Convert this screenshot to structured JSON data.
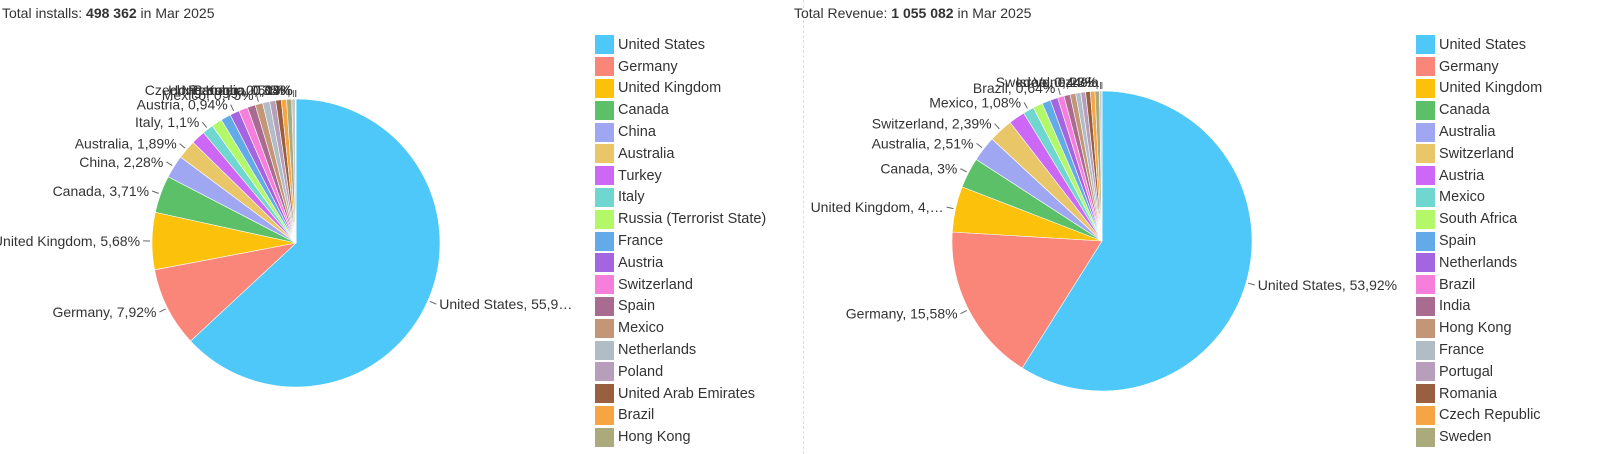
{
  "panels": [
    {
      "title_prefix": "Total installs:",
      "title_total": "498 362",
      "title_suffix": "in Mar 2025",
      "legend": [
        "United States",
        "Germany",
        "United Kingdom",
        "Canada",
        "China",
        "Australia",
        "Turkey",
        "Italy",
        "Russia (Terrorist State)",
        "France",
        "Austria",
        "Switzerland",
        "Spain",
        "Mexico",
        "Netherlands",
        "Poland",
        "United Arab Emirates",
        "Brazil",
        "Hong Kong"
      ]
    },
    {
      "title_prefix": "Total Revenue:",
      "title_total": "1 055 082",
      "title_suffix": "in Mar 2025",
      "legend": [
        "United States",
        "Germany",
        "United Kingdom",
        "Canada",
        "Australia",
        "Switzerland",
        "Austria",
        "Mexico",
        "South Africa",
        "Spain",
        "Netherlands",
        "Brazil",
        "India",
        "Hong Kong",
        "France",
        "Portugal",
        "Romania",
        "Czech Republic",
        "Sweden"
      ]
    }
  ],
  "colors": [
    "#4dc8f9",
    "#f98678",
    "#fcc10b",
    "#5bc067",
    "#9fa7f2",
    "#e9c768",
    "#cd67f5",
    "#6fd6d0",
    "#b3f868",
    "#63abe8",
    "#a465e0",
    "#f77fdc",
    "#a86c91",
    "#c49678",
    "#b0bcc6",
    "#b79ebb",
    "#986041",
    "#f6a545",
    "#aaaa7c"
  ],
  "chart_data": [
    {
      "type": "pie",
      "title": "Total installs: 498 362 in Mar 2025",
      "legend_position": "right",
      "slices": [
        {
          "label": "United States",
          "value": 55.9,
          "display": "United States, 55,9…"
        },
        {
          "label": "Germany",
          "value": 7.92,
          "display": "Germany, 7,92%"
        },
        {
          "label": "United Kingdom",
          "value": 5.68,
          "display": "United Kingdom, 5,68%"
        },
        {
          "label": "Canada",
          "value": 3.71,
          "display": "Canada, 3,71%"
        },
        {
          "label": "China",
          "value": 2.28,
          "display": "China, 2,28%"
        },
        {
          "label": "Australia",
          "value": 1.89,
          "display": "Australia, 1,89%"
        },
        {
          "label": "Turkey",
          "value": 1.4
        },
        {
          "label": "Italy",
          "value": 1.1,
          "display": "Italy, 1,1%"
        },
        {
          "label": "Russia (Terrorist State)",
          "value": 1.05
        },
        {
          "label": "France",
          "value": 1.0
        },
        {
          "label": "Austria",
          "value": 0.94,
          "display": "Austria, 0,94%"
        },
        {
          "label": "Switzerland",
          "value": 0.9
        },
        {
          "label": "Spain",
          "value": 0.8
        },
        {
          "label": "Mexico",
          "value": 0.75,
          "display": "Mexico, 0,75%"
        },
        {
          "label": "Netherlands",
          "value": 0.7
        },
        {
          "label": "Poland",
          "value": 0.6
        },
        {
          "label": "United Arab Emirates",
          "value": 0.55
        },
        {
          "label": "Brazil",
          "value": 0.52
        },
        {
          "label": "Hong Kong",
          "value": 0.51,
          "display": "Hong Kong, 0,51%"
        },
        {
          "label": "Czech Republic",
          "value": 0.35,
          "display": "Czech Republic, 0,35%"
        },
        {
          "label": "Panama",
          "value": 0.04,
          "display": "Panama, 0,04%"
        },
        {
          "label": "Nicaragua",
          "value": 0.03,
          "display": "Nicaragua, 0,03%"
        }
      ]
    },
    {
      "type": "pie",
      "title": "Total Revenue: 1 055 082 in Mar 2025",
      "legend_position": "right",
      "slices": [
        {
          "label": "United States",
          "value": 53.92,
          "display": "United States, 53,92%"
        },
        {
          "label": "Germany",
          "value": 15.58,
          "display": "Germany, 15,58%"
        },
        {
          "label": "United Kingdom",
          "value": 4.5,
          "display": "United Kingdom, 4,…"
        },
        {
          "label": "Canada",
          "value": 3.0,
          "display": "Canada, 3%"
        },
        {
          "label": "Australia",
          "value": 2.51,
          "display": "Australia, 2,51%"
        },
        {
          "label": "Switzerland",
          "value": 2.39,
          "display": "Switzerland, 2,39%"
        },
        {
          "label": "Austria",
          "value": 1.6
        },
        {
          "label": "Mexico",
          "value": 1.08,
          "display": "Mexico, 1,08%"
        },
        {
          "label": "South Africa",
          "value": 0.95
        },
        {
          "label": "Spain",
          "value": 0.85
        },
        {
          "label": "Netherlands",
          "value": 0.75
        },
        {
          "label": "Brazil",
          "value": 0.64,
          "display": "Brazil, 0,64%"
        },
        {
          "label": "India",
          "value": 0.6
        },
        {
          "label": "Hong Kong",
          "value": 0.55
        },
        {
          "label": "France",
          "value": 0.5
        },
        {
          "label": "Portugal",
          "value": 0.48
        },
        {
          "label": "Romania",
          "value": 0.46
        },
        {
          "label": "Czech Republic",
          "value": 0.45
        },
        {
          "label": "Sweden",
          "value": 0.44,
          "display": "Sweden, 0,44%"
        },
        {
          "label": "Israel",
          "value": 0.23,
          "display": "Israel, 0,23%"
        },
        {
          "label": "Venezuela",
          "value": 0.02,
          "display": "Venezuela"
        }
      ]
    }
  ]
}
